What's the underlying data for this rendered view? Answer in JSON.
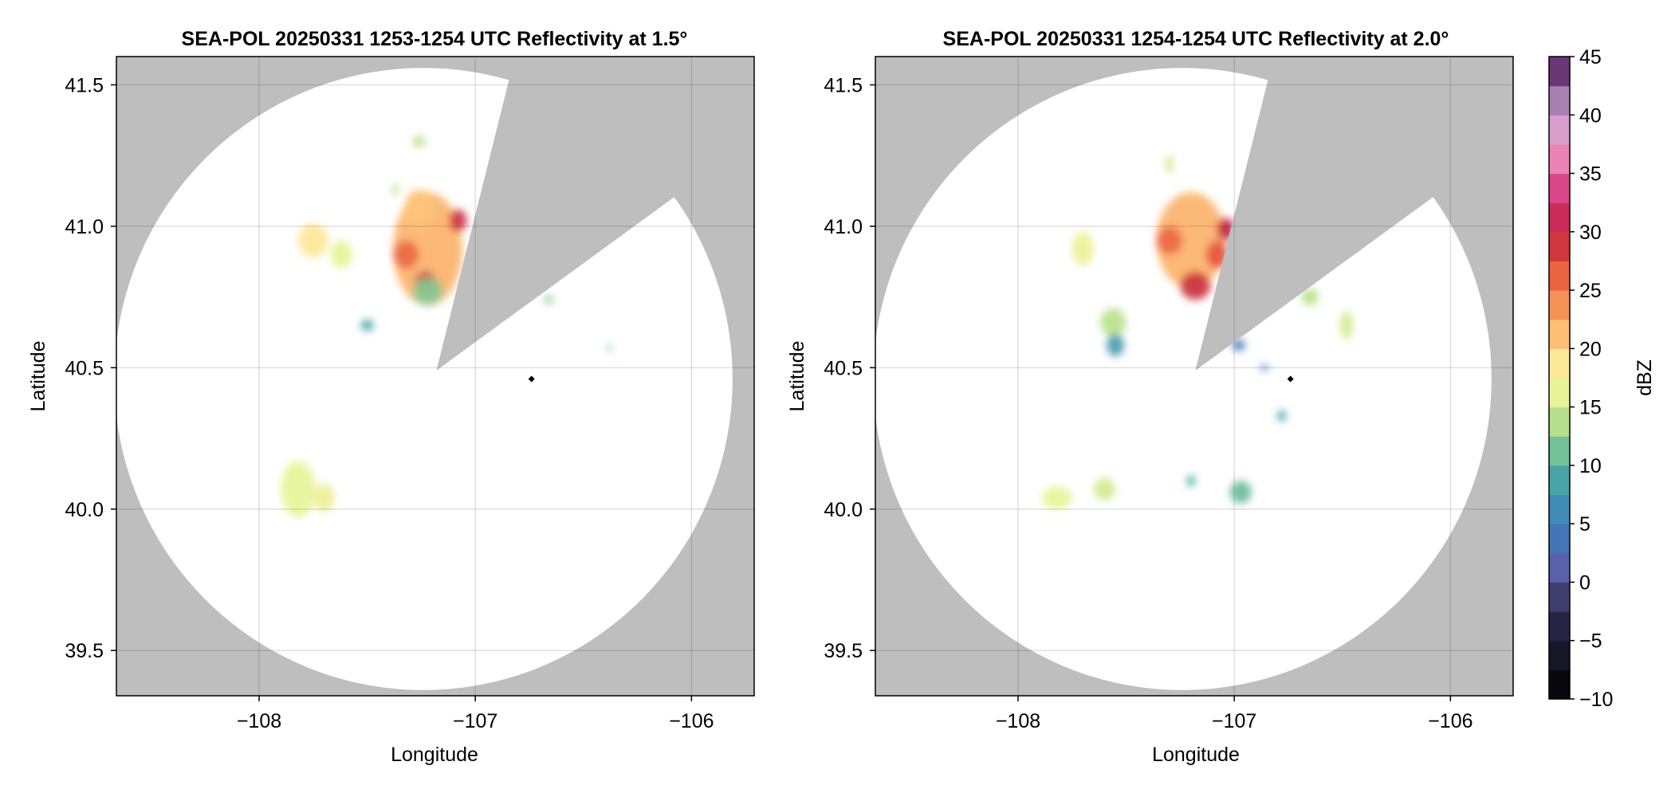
{
  "figure": {
    "background": "#ffffff"
  },
  "chart_data": [
    {
      "type": "heatmap",
      "title": "SEA-POL 20250331 1253-1254 UTC Reflectivity at 1.5°",
      "xlabel": "Longitude",
      "ylabel": "Latitude",
      "xlim": [
        -108.66,
        -105.71
      ],
      "ylim": [
        39.34,
        41.6
      ],
      "xticks": [
        -108,
        -107,
        -106
      ],
      "xtick_labels": [
        "−108",
        "−107",
        "−106"
      ],
      "yticks": [
        39.5,
        40.0,
        40.5,
        41.0,
        41.5
      ],
      "ytick_labels": [
        "39.5",
        "40.0",
        "40.5",
        "41.0",
        "41.5"
      ],
      "grid": true,
      "no_data_color": "#bebebe",
      "radar_coverage": {
        "center": [
          -107.24,
          40.46
        ],
        "lon_radius": 1.43,
        "lat_radius": 1.1
      },
      "blocked_sectors": [
        {
          "vertex": [
            -107.18,
            40.49
          ],
          "edges": [
            [
              -106.84,
              41.53
            ],
            [
              -106.05,
              41.12
            ]
          ]
        }
      ],
      "radar_marker": [
        -106.74,
        40.46
      ],
      "echoes": [
        {
          "lon": -107.22,
          "lat": 40.92,
          "lon_half_width": 0.16,
          "lat_half_height": 0.2,
          "dbz": 22
        },
        {
          "lon": -107.23,
          "lat": 40.8,
          "lon_half_width": 0.05,
          "lat_half_height": 0.04,
          "dbz": 30
        },
        {
          "lon": -107.08,
          "lat": 41.02,
          "lon_half_width": 0.04,
          "lat_half_height": 0.04,
          "dbz": 29
        },
        {
          "lon": -107.32,
          "lat": 40.9,
          "lon_half_width": 0.06,
          "lat_half_height": 0.05,
          "dbz": 26
        },
        {
          "lon": -107.26,
          "lat": 41.06,
          "lon_half_width": 0.07,
          "lat_half_height": 0.07,
          "dbz": 21
        },
        {
          "lon": -107.22,
          "lat": 40.77,
          "lon_half_width": 0.07,
          "lat_half_height": 0.05,
          "dbz": 12
        },
        {
          "lon": -107.75,
          "lat": 40.95,
          "lon_half_width": 0.07,
          "lat_half_height": 0.06,
          "dbz": 19
        },
        {
          "lon": -107.62,
          "lat": 40.9,
          "lon_half_width": 0.05,
          "lat_half_height": 0.05,
          "dbz": 16
        },
        {
          "lon": -107.26,
          "lat": 41.3,
          "lon_half_width": 0.03,
          "lat_half_height": 0.02,
          "dbz": 14
        },
        {
          "lon": -107.37,
          "lat": 41.13,
          "lon_half_width": 0.015,
          "lat_half_height": 0.02,
          "dbz": 14
        },
        {
          "lon": -107.5,
          "lat": 40.65,
          "lon_half_width": 0.03,
          "lat_half_height": 0.02,
          "dbz": 9
        },
        {
          "lon": -107.82,
          "lat": 40.07,
          "lon_half_width": 0.08,
          "lat_half_height": 0.1,
          "dbz": 16
        },
        {
          "lon": -107.7,
          "lat": 40.04,
          "lon_half_width": 0.05,
          "lat_half_height": 0.05,
          "dbz": 17
        },
        {
          "lon": -106.66,
          "lat": 40.74,
          "lon_half_width": 0.02,
          "lat_half_height": 0.015,
          "dbz": 12
        },
        {
          "lon": -106.38,
          "lat": 40.57,
          "lon_half_width": 0.01,
          "lat_half_height": 0.01,
          "dbz": 10
        }
      ]
    },
    {
      "type": "heatmap",
      "title": "SEA-POL 20250331 1254-1254 UTC Reflectivity at 2.0°",
      "xlabel": "Longitude",
      "ylabel": "Latitude",
      "xlim": [
        -108.66,
        -105.71
      ],
      "ylim": [
        39.34,
        41.6
      ],
      "xticks": [
        -108,
        -107,
        -106
      ],
      "xtick_labels": [
        "−108",
        "−107",
        "−106"
      ],
      "yticks": [
        39.5,
        40.0,
        40.5,
        41.0,
        41.5
      ],
      "ytick_labels": [
        "39.5",
        "40.0",
        "40.5",
        "41.0",
        "41.5"
      ],
      "grid": true,
      "no_data_color": "#bebebe",
      "radar_coverage": {
        "center": [
          -107.24,
          40.46
        ],
        "lon_radius": 1.43,
        "lat_radius": 1.1
      },
      "blocked_sectors": [
        {
          "vertex": [
            -107.18,
            40.49
          ],
          "edges": [
            [
              -106.84,
              41.53
            ],
            [
              -106.05,
              41.12
            ]
          ]
        }
      ],
      "radar_marker": [
        -106.74,
        40.46
      ],
      "echoes": [
        {
          "lon": -107.2,
          "lat": 40.95,
          "lon_half_width": 0.16,
          "lat_half_height": 0.17,
          "dbz": 22
        },
        {
          "lon": -107.18,
          "lat": 40.79,
          "lon_half_width": 0.07,
          "lat_half_height": 0.05,
          "dbz": 29
        },
        {
          "lon": -107.3,
          "lat": 40.95,
          "lon_half_width": 0.06,
          "lat_half_height": 0.05,
          "dbz": 26
        },
        {
          "lon": -107.04,
          "lat": 40.99,
          "lon_half_width": 0.04,
          "lat_half_height": 0.04,
          "dbz": 30
        },
        {
          "lon": -107.08,
          "lat": 40.9,
          "lon_half_width": 0.05,
          "lat_half_height": 0.05,
          "dbz": 27
        },
        {
          "lon": -107.7,
          "lat": 40.92,
          "lon_half_width": 0.05,
          "lat_half_height": 0.06,
          "dbz": 17
        },
        {
          "lon": -107.56,
          "lat": 40.66,
          "lon_half_width": 0.06,
          "lat_half_height": 0.05,
          "dbz": 14
        },
        {
          "lon": -107.55,
          "lat": 40.58,
          "lon_half_width": 0.04,
          "lat_half_height": 0.04,
          "dbz": 8
        },
        {
          "lon": -106.98,
          "lat": 40.58,
          "lon_half_width": 0.03,
          "lat_half_height": 0.02,
          "dbz": 4
        },
        {
          "lon": -106.86,
          "lat": 40.5,
          "lon_half_width": 0.02,
          "lat_half_height": 0.01,
          "dbz": 5
        },
        {
          "lon": -106.78,
          "lat": 40.33,
          "lon_half_width": 0.02,
          "lat_half_height": 0.02,
          "dbz": 9
        },
        {
          "lon": -106.65,
          "lat": 40.75,
          "lon_half_width": 0.04,
          "lat_half_height": 0.03,
          "dbz": 14
        },
        {
          "lon": -106.48,
          "lat": 40.65,
          "lon_half_width": 0.03,
          "lat_half_height": 0.05,
          "dbz": 15
        },
        {
          "lon": -107.82,
          "lat": 40.04,
          "lon_half_width": 0.07,
          "lat_half_height": 0.04,
          "dbz": 16
        },
        {
          "lon": -107.6,
          "lat": 40.07,
          "lon_half_width": 0.05,
          "lat_half_height": 0.04,
          "dbz": 15
        },
        {
          "lon": -106.97,
          "lat": 40.06,
          "lon_half_width": 0.05,
          "lat_half_height": 0.04,
          "dbz": 11
        },
        {
          "lon": -107.2,
          "lat": 40.1,
          "lon_half_width": 0.02,
          "lat_half_height": 0.02,
          "dbz": 10
        },
        {
          "lon": -107.3,
          "lat": 41.22,
          "lon_half_width": 0.02,
          "lat_half_height": 0.03,
          "dbz": 15
        }
      ]
    }
  ],
  "colorbar": {
    "label": "dBZ",
    "range": [
      -10,
      45
    ],
    "step": 2.5,
    "ticks": [
      -10,
      -5,
      0,
      5,
      10,
      15,
      20,
      25,
      30,
      35,
      40,
      45
    ],
    "tick_labels": [
      "−10",
      "−5",
      "0",
      "5",
      "10",
      "15",
      "20",
      "25",
      "30",
      "35",
      "40",
      "45"
    ],
    "colormap_stops": [
      {
        "value": -10,
        "color": "#000000"
      },
      {
        "value": -2.5,
        "color": "#2e2b50"
      },
      {
        "value": 1,
        "color": "#5a5fa8"
      },
      {
        "value": 5,
        "color": "#3b7fbe"
      },
      {
        "value": 10,
        "color": "#4eb0a1"
      },
      {
        "value": 13,
        "color": "#a4d888"
      },
      {
        "value": 16,
        "color": "#e6f598"
      },
      {
        "value": 19,
        "color": "#fee797"
      },
      {
        "value": 23,
        "color": "#fba05b"
      },
      {
        "value": 27,
        "color": "#e4563e"
      },
      {
        "value": 30,
        "color": "#c0203f"
      },
      {
        "value": 34,
        "color": "#dc4b8e"
      },
      {
        "value": 37,
        "color": "#f196c4"
      },
      {
        "value": 40,
        "color": "#c8a2d2"
      },
      {
        "value": 45,
        "color": "#4a1257"
      }
    ]
  }
}
